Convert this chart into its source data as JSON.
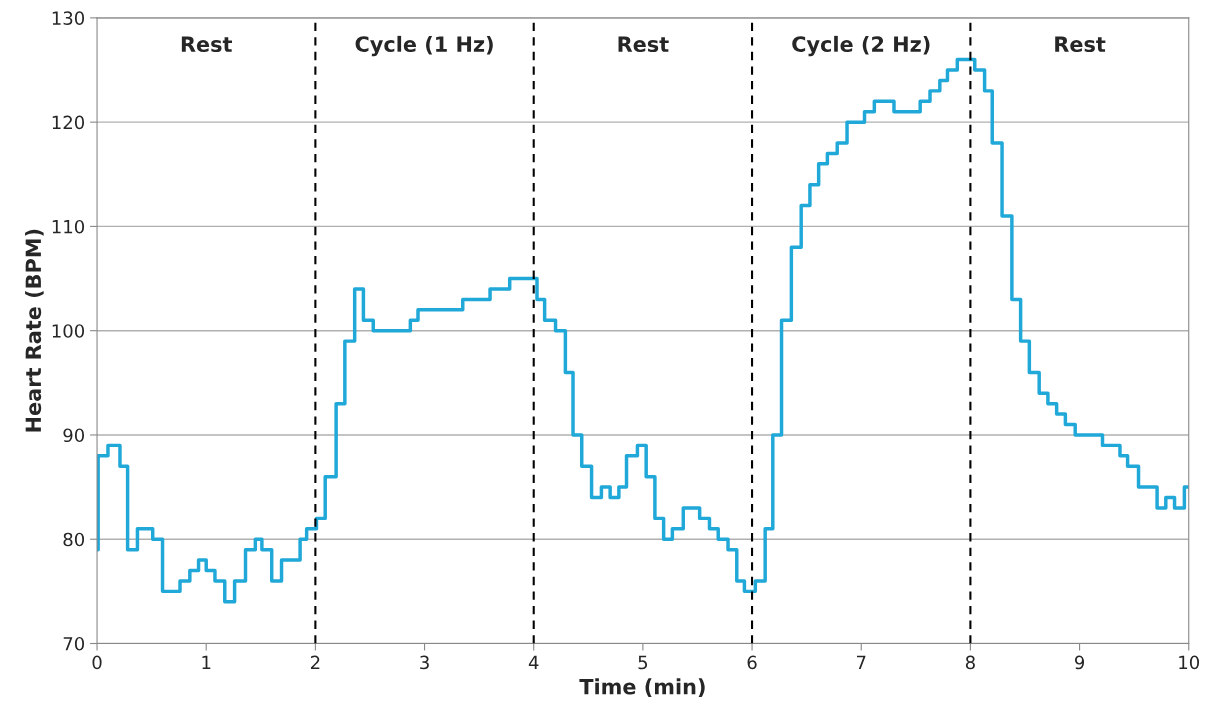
{
  "chart_data": {
    "type": "step",
    "xlabel": "Time (min)",
    "ylabel": "Heart Rate (BPM)",
    "x": [
      0,
      0.01,
      0.1,
      0.21,
      0.28,
      0.37,
      0.51,
      0.6,
      0.76,
      0.85,
      0.93,
      1.0,
      1.08,
      1.17,
      1.26,
      1.36,
      1.45,
      1.51,
      1.6,
      1.69,
      1.86,
      1.92,
      2.01,
      2.09,
      2.19,
      2.27,
      2.36,
      2.44,
      2.53,
      2.87,
      2.94,
      3.35,
      3.6,
      3.78,
      4.03,
      4.1,
      4.2,
      4.29,
      4.36,
      4.44,
      4.53,
      4.62,
      4.7,
      4.78,
      4.85,
      4.95,
      5.03,
      5.11,
      5.19,
      5.27,
      5.37,
      5.52,
      5.61,
      5.69,
      5.78,
      5.86,
      5.93,
      6.03,
      6.12,
      6.19,
      6.27,
      6.36,
      6.45,
      6.53,
      6.61,
      6.69,
      6.78,
      6.87,
      7.03,
      7.12,
      7.3,
      7.54,
      7.63,
      7.72,
      7.79,
      7.88,
      8.04,
      8.13,
      8.2,
      8.29,
      8.38,
      8.46,
      8.54,
      8.63,
      8.71,
      8.79,
      8.87,
      8.96,
      9.21,
      9.37,
      9.44,
      9.54,
      9.71,
      9.79,
      9.87,
      9.96,
      10
    ],
    "series": [
      {
        "color": "#1fa8d8",
        "values": [
          79,
          88,
          89,
          87,
          79,
          81,
          80,
          75,
          76,
          77,
          78,
          77,
          76,
          74,
          76,
          79,
          80,
          79,
          76,
          78,
          80,
          81,
          82,
          86,
          93,
          99,
          104,
          101,
          100,
          101,
          102,
          103,
          104,
          105,
          103,
          101,
          100,
          96,
          90,
          87,
          84,
          85,
          84,
          85,
          88,
          89,
          86,
          82,
          80,
          81,
          83,
          82,
          81,
          80,
          79,
          76,
          75,
          76,
          81,
          90,
          101,
          108,
          112,
          114,
          116,
          117,
          118,
          120,
          121,
          122,
          121,
          122,
          123,
          124,
          125,
          126,
          125,
          123,
          118,
          111,
          103,
          99,
          96,
          94,
          93,
          92,
          91,
          90,
          89,
          88,
          87,
          85,
          83,
          84,
          83,
          85,
          85
        ]
      }
    ],
    "xlim": [
      0,
      10
    ],
    "ylim": [
      70,
      130
    ],
    "xticks": [
      0,
      1,
      2,
      3,
      4,
      5,
      6,
      7,
      8,
      9,
      10
    ],
    "yticks": [
      70,
      80,
      90,
      100,
      110,
      120,
      130
    ],
    "grid": "y",
    "legend": false,
    "ref_lines": [
      {
        "axis": "x",
        "value": 2,
        "color": "#000000",
        "line_style": "dashed"
      },
      {
        "axis": "x",
        "value": 4,
        "color": "#000000",
        "line_style": "dashed"
      },
      {
        "axis": "x",
        "value": 6,
        "color": "#000000",
        "line_style": "dashed"
      },
      {
        "axis": "x",
        "value": 8,
        "color": "#000000",
        "line_style": "dashed"
      }
    ],
    "annotations": [
      "Rest",
      "Cycle (1 Hz)",
      "Rest",
      "Cycle (2 Hz)",
      "Rest"
    ]
  }
}
